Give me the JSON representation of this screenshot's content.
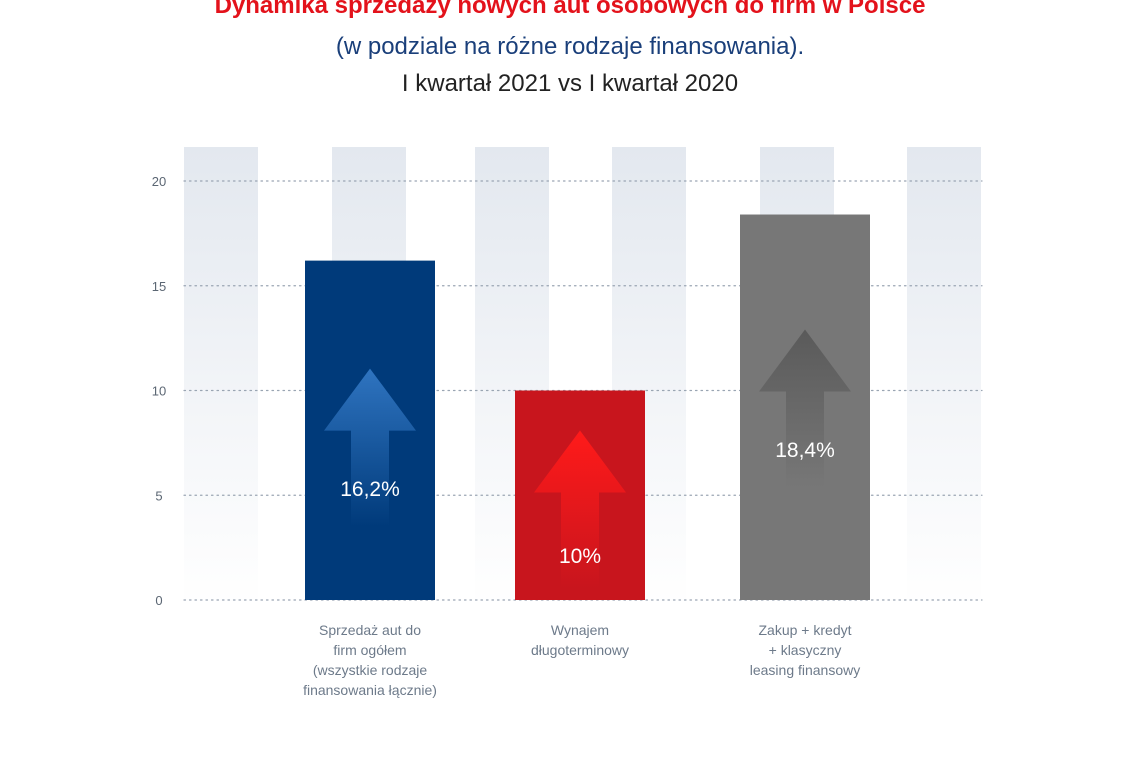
{
  "header": {
    "title": "Dynamika sprzedaży nowych aut osobowych do firm w Polsce",
    "subtitle": "(w podziale na różne rodzaje finansowania).",
    "period": "I kwartał 2021 vs I kwartał 2020"
  },
  "chart_data": {
    "type": "bar",
    "categories": [
      "Sprzedaż aut do\nfirm ogółem\n(wszystkie rodzaje\nfinansowania łącznie)",
      "Wynajem\ndługoterminowy",
      "Zakup + kredyt\n+ klasyczny\nleasing finansowy"
    ],
    "values": [
      16.2,
      10,
      18.4
    ],
    "value_labels": [
      "16,2%",
      "10%",
      "18,4%"
    ],
    "bar_colors": [
      "#003a7a",
      "#c8151d",
      "#777777"
    ],
    "arrow_colors": [
      "#2f74c0",
      "#ff1a1a",
      "#5a5a5a"
    ],
    "ylim": [
      0,
      20
    ],
    "yticks": [
      "0",
      "5",
      "10",
      "15",
      "20"
    ],
    "grid": true,
    "background_stripes": true
  }
}
